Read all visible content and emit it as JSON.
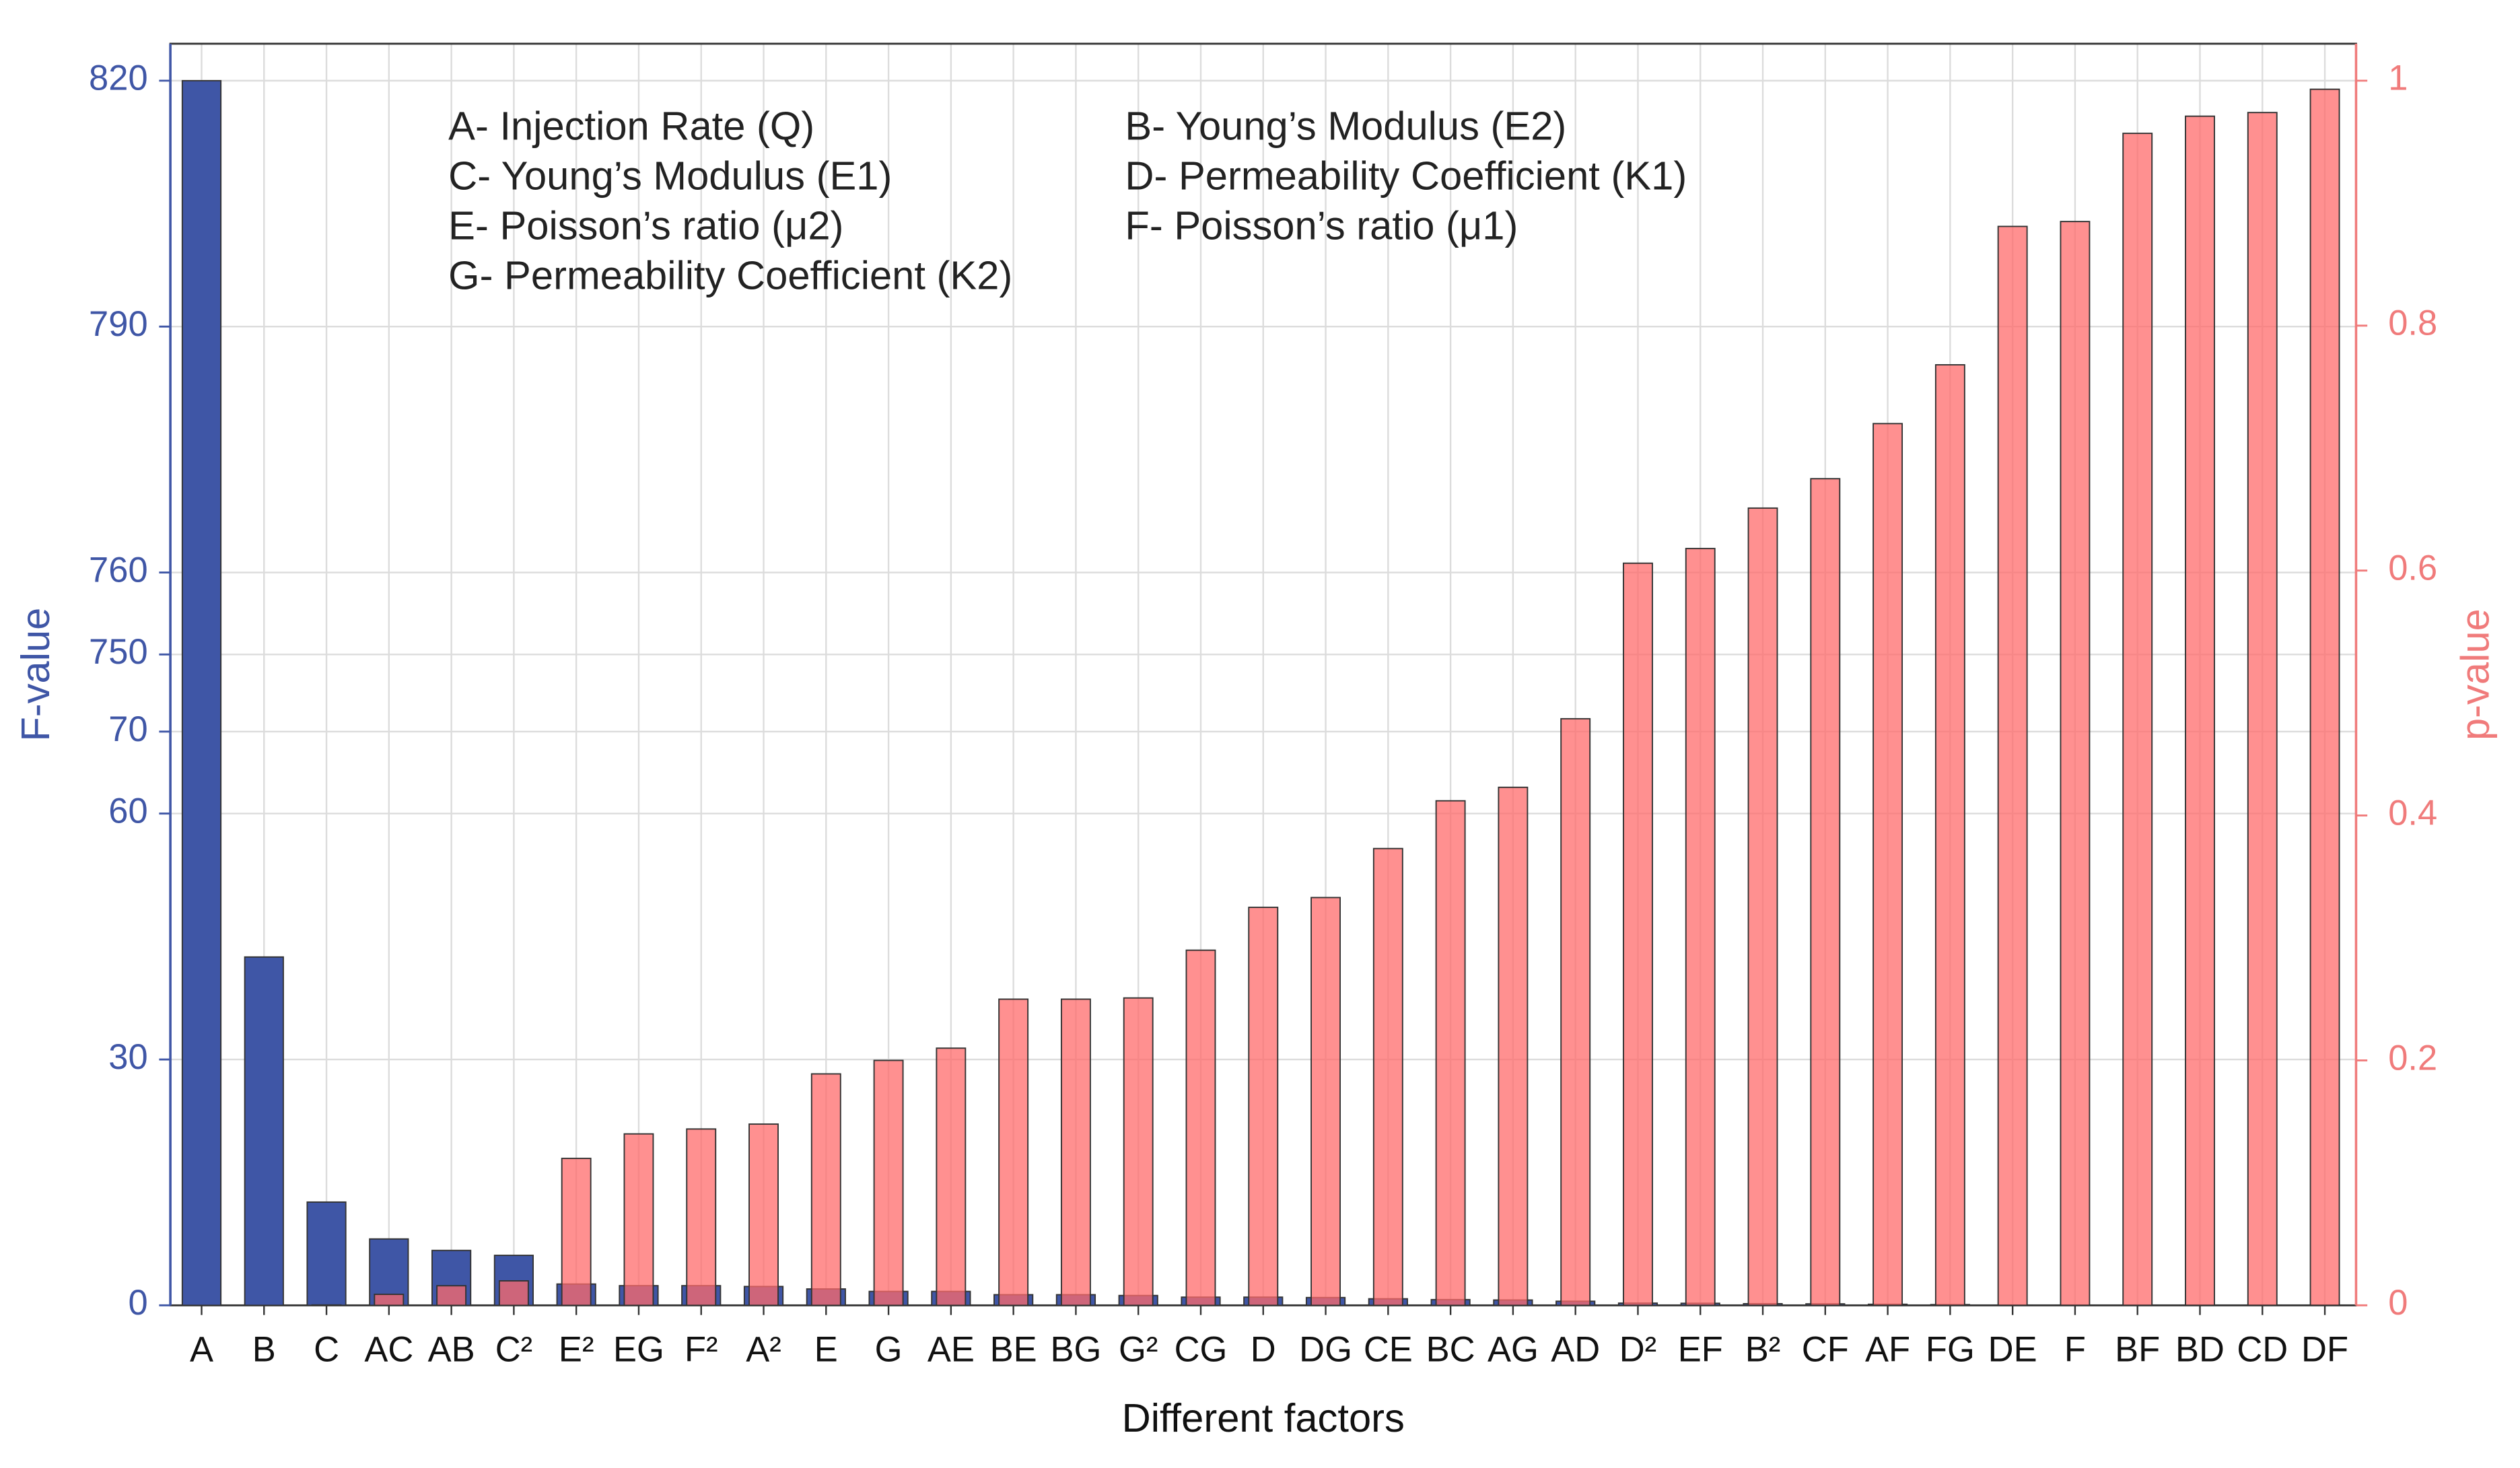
{
  "chart_data": {
    "type": "bar",
    "xlabel": "Different factors",
    "ylabel": "F-value",
    "y2label": "p-value",
    "annotations": [
      "A- Injection Rate (Q)",
      "B- Young’s Modulus (E2)",
      "C- Young’s Modulus (E1)",
      "D- Permeability Coefficient (K1)",
      "E- Poisson’s ratio (μ2)",
      "F- Poisson’s ratio (μ1)",
      "G- Permeability Coefficient (K2)"
    ],
    "categories": [
      "A",
      "B",
      "C",
      "AC",
      "AB",
      "C²",
      "E²",
      "EG",
      "F²",
      "A²",
      "E",
      "G",
      "AE",
      "BE",
      "BG",
      "G²",
      "CG",
      "D",
      "DG",
      "CE",
      "BC",
      "AG",
      "AD",
      "D²",
      "EF",
      "B²",
      "CF",
      "AF",
      "FG",
      "DE",
      "F",
      "BF",
      "BD",
      "CD",
      "DF"
    ],
    "series": [
      {
        "color": "#3f56a6",
        "values": [
          820,
          42.5,
          12.6,
          8.1,
          6.7,
          6.1,
          2.6,
          2.4,
          2.4,
          2.3,
          2.0,
          1.7,
          1.7,
          1.3,
          1.3,
          1.2,
          1.0,
          1.0,
          0.95,
          0.8,
          0.7,
          0.65,
          0.5,
          0.27,
          0.25,
          0.2,
          0.18,
          0.13,
          0.09,
          0.02,
          0.02,
          0.003,
          0.001,
          0.001,
          0.0005
        ]
      },
      {
        "color": "#ff6b6b",
        "axis": "y2",
        "values": [
          0,
          0,
          0.0003,
          0.009,
          0.016,
          0.02,
          0.12,
          0.14,
          0.144,
          0.148,
          0.189,
          0.2,
          0.21,
          0.25,
          0.25,
          0.251,
          0.29,
          0.325,
          0.333,
          0.373,
          0.412,
          0.423,
          0.479,
          0.606,
          0.618,
          0.651,
          0.675,
          0.72,
          0.768,
          0.881,
          0.885,
          0.957,
          0.971,
          0.974,
          0.993
        ]
      }
    ],
    "ylim": [
      0,
      820
    ],
    "y_break": [
      70,
      750
    ],
    "yticks": [
      0,
      30,
      60,
      70,
      750,
      760,
      790,
      820
    ],
    "y2lim": [
      0,
      1
    ],
    "y2ticks": [
      0,
      0.2,
      0.4,
      0.6,
      0.8,
      1
    ],
    "grid": true,
    "y_color": "#3f56a6",
    "y2_color": "#f07b7b"
  }
}
